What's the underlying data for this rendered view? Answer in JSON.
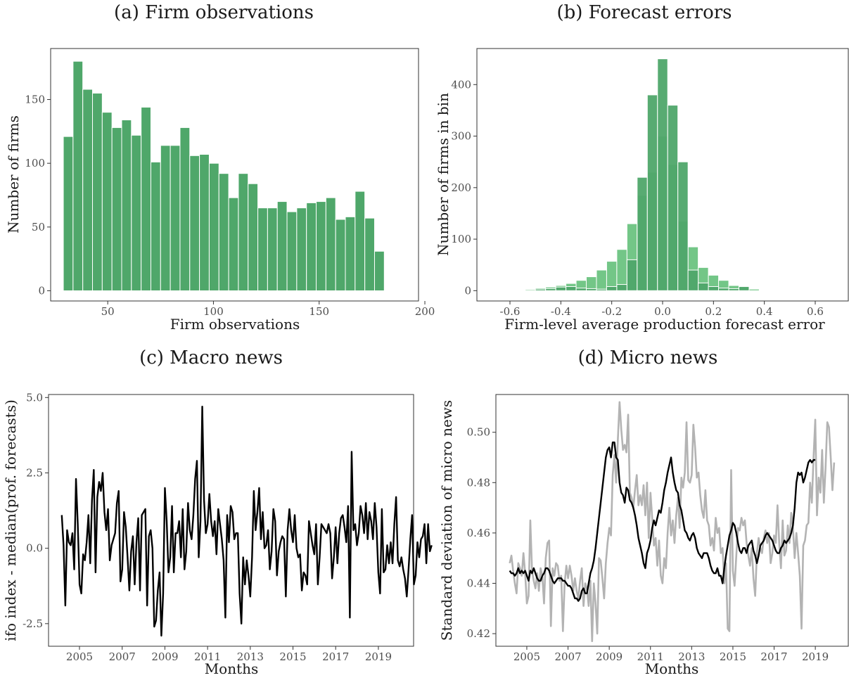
{
  "colors": {
    "bar_green": "#4fa76a",
    "bar_light_green": "#73c687",
    "line_black": "#000000",
    "line_grey": "#b3b3b3"
  },
  "chart_data": [
    {
      "panel": "a",
      "type": "bar",
      "title": "(a) Firm observations",
      "xlabel": "Firm observations",
      "ylabel": "Number of firms",
      "xlim": [
        23,
        197
      ],
      "ylim": [
        -8,
        190
      ],
      "xticks": [
        50,
        100,
        150,
        200
      ],
      "yticks": [
        0,
        50,
        100,
        150
      ],
      "xtick_labels": [
        "50",
        "100",
        "150",
        "200"
      ],
      "ytick_labels": [
        "0",
        "50",
        "100",
        "150"
      ],
      "bin_width": 4.6,
      "bin_start": 29,
      "values": [
        121,
        180,
        158,
        155,
        140,
        128,
        134,
        122,
        144,
        101,
        114,
        114,
        128,
        106,
        107,
        100,
        92,
        73,
        92,
        84,
        65,
        65,
        70,
        62,
        65,
        69,
        70,
        73,
        56,
        58,
        78,
        57,
        31
      ]
    },
    {
      "panel": "b",
      "type": "bar",
      "title": "(b) Forecast errors",
      "xlabel": "Firm-level average production forecast error",
      "ylabel": "Number of firms in bin",
      "xlim": [
        -0.73,
        0.73
      ],
      "ylim": [
        -20,
        470
      ],
      "xticks": [
        -0.6,
        -0.4,
        -0.2,
        0.0,
        0.2,
        0.4,
        0.6
      ],
      "yticks": [
        0,
        100,
        200,
        300,
        400
      ],
      "xtick_labels": [
        "-0.6",
        "-0.4",
        "-0.2",
        "0.0",
        "0.2",
        "0.4",
        "0.6"
      ],
      "ytick_labels": [
        "0",
        "100",
        "200",
        "300",
        "400"
      ],
      "series": [
        {
          "name": "light",
          "bin_width": 0.04,
          "x": [
            -0.6,
            -0.56,
            -0.52,
            -0.48,
            -0.44,
            -0.4,
            -0.36,
            -0.32,
            -0.28,
            -0.24,
            -0.2,
            -0.16,
            -0.12,
            -0.08,
            -0.04,
            0.0,
            0.04,
            0.08,
            0.12,
            0.16,
            0.2,
            0.24,
            0.28,
            0.32,
            0.36,
            0.4
          ],
          "values": [
            1,
            1,
            2,
            5,
            7,
            10,
            14,
            20,
            27,
            40,
            57,
            80,
            130,
            185,
            230,
            300,
            245,
            135,
            85,
            45,
            30,
            20,
            10,
            6,
            3,
            1
          ]
        },
        {
          "name": "dark",
          "bin_width": 0.04,
          "x": [
            -0.6,
            -0.56,
            -0.52,
            -0.48,
            -0.44,
            -0.4,
            -0.36,
            -0.32,
            -0.28,
            -0.24,
            -0.2,
            -0.16,
            -0.12,
            -0.08,
            -0.04,
            0.0,
            0.04,
            0.08,
            0.12,
            0.16,
            0.2,
            0.24,
            0.28,
            0.32,
            0.36,
            0.4
          ],
          "values": [
            0,
            0,
            0,
            3,
            4,
            7,
            8,
            5,
            4,
            3,
            8,
            12,
            60,
            220,
            380,
            450,
            360,
            250,
            40,
            15,
            8,
            5,
            4,
            8,
            0,
            0
          ]
        }
      ]
    },
    {
      "panel": "c",
      "type": "line",
      "title": "(c) Macro news",
      "xlabel": "Months",
      "ylabel": "ifo index - median(prof. forecasts)",
      "xlim": [
        2003.55,
        2020.65
      ],
      "ylim": [
        -3.25,
        5.1
      ],
      "xticks": [
        2005,
        2007,
        2009,
        2011,
        2013,
        2015,
        2017,
        2019
      ],
      "yticks": [
        -2.5,
        0.0,
        2.5,
        5.0
      ],
      "xtick_labels": [
        "2005",
        "2007",
        "2009",
        "2011",
        "2013",
        "2015",
        "2017",
        "2019"
      ],
      "ytick_labels": [
        "-2.5",
        "0.0",
        "2.5",
        "5.0"
      ],
      "series": [
        {
          "x_start": 2004.17,
          "x_step": 0.0833,
          "values": [
            1.1,
            0.1,
            -1.9,
            0.6,
            0.2,
            0.1,
            0.5,
            -0.7,
            2.3,
            0.8,
            -1.2,
            -1.5,
            -0.2,
            -0.4,
            0.2,
            1.1,
            -0.5,
            1.6,
            2.6,
            -0.8,
            1.7,
            2.2,
            1.9,
            2.5,
            1.2,
            0.6,
            1.3,
            -0.4,
            0.1,
            0.3,
            0.5,
            1.5,
            1.9,
            -1.1,
            -0.7,
            1.2,
            0.7,
            -0.3,
            -1.4,
            -0.1,
            0.4,
            -1.2,
            0.2,
            1.0,
            -1.4,
            1.1,
            1.2,
            1.3,
            -1.9,
            0.4,
            0.6,
            0.0,
            -2.6,
            -2.4,
            -1.4,
            -0.8,
            -2.9,
            -1.5,
            2.0,
            0.9,
            -0.8,
            -0.3,
            1.4,
            -0.8,
            0.5,
            0.5,
            0.9,
            -0.3,
            1.3,
            -0.7,
            -0.1,
            1.5,
            0.6,
            0.3,
            1.1,
            2.3,
            2.9,
            -0.3,
            0.9,
            4.7,
            1.6,
            0.5,
            0.8,
            1.8,
            0.9,
            0.4,
            0.9,
            -0.2,
            1.3,
            0.8,
            0.3,
            -0.4,
            -2.3,
            1.1,
            0.2,
            1.4,
            1.2,
            0.3,
            0.5,
            0.5,
            -1.5,
            -2.5,
            -0.3,
            -1.2,
            -0.4,
            -0.9,
            -1.6,
            -0.3,
            1.9,
            0.6,
            1.2,
            2.0,
            0.3,
            1.2,
            0.0,
            0.1,
            0.6,
            -0.7,
            -0.1,
            1.3,
            0.9,
            -0.9,
            -0.1,
            0.2,
            0.4,
            0.3,
            -1.6,
            0.6,
            1.3,
            0.6,
            0.2,
            1.1,
            0.0,
            -0.3,
            -0.2,
            -1.4,
            -0.8,
            -0.9,
            -1.2,
            0.9,
            0.5,
            0.1,
            -0.2,
            0.8,
            -1.2,
            -0.3,
            0.8,
            0.7,
            0.6,
            0.5,
            0.8,
            0.5,
            -1.0,
            -0.3,
            0.7,
            -0.5,
            0.5,
            1.0,
            1.1,
            0.7,
            0.2,
            1.4,
            -2.3,
            3.2,
            0.6,
            0.8,
            0.1,
            0.5,
            1.4,
            1.1,
            0.5,
            1.5,
            0.3,
            1.2,
            0.9,
            0.3,
            1.5,
            0.7,
            -0.8,
            -1.5,
            1.3,
            -0.8,
            -0.7,
            0.1,
            -0.5,
            0.2,
            -0.5,
            0.8,
            1.7,
            -0.4,
            -0.6,
            -0.3,
            -0.7,
            -1.0,
            -1.6,
            -0.7,
            0.3,
            1.1,
            -1.2,
            -0.9,
            0.2,
            -0.3,
            0.3,
            0.4,
            0.8,
            -0.5,
            0.8,
            -0.1,
            0.1
          ]
        }
      ]
    },
    {
      "panel": "d",
      "type": "line",
      "title": "(d) Micro news",
      "xlabel": "Months",
      "ylabel": "Standard deviation of micro news",
      "xlim": [
        2003.5,
        2020.6
      ],
      "ylim": [
        0.415,
        0.515
      ],
      "xticks": [
        2005,
        2007,
        2009,
        2011,
        2013,
        2015,
        2017,
        2019
      ],
      "yticks": [
        0.42,
        0.44,
        0.46,
        0.48,
        0.5
      ],
      "xtick_labels": [
        "2005",
        "2007",
        "2009",
        "2011",
        "2013",
        "2015",
        "2017",
        "2019"
      ],
      "ytick_labels": [
        "0.42",
        "0.44",
        "0.46",
        "0.48",
        "0.50"
      ],
      "series": [
        {
          "name": "monthly",
          "x_start": 2004.17,
          "x_step": 0.0833,
          "values": [
            0.448,
            0.451,
            0.445,
            0.44,
            0.436,
            0.448,
            0.446,
            0.443,
            0.452,
            0.444,
            0.432,
            0.435,
            0.465,
            0.445,
            0.441,
            0.438,
            0.444,
            0.437,
            0.446,
            0.443,
            0.432,
            0.45,
            0.456,
            0.457,
            0.423,
            0.446,
            0.443,
            0.448,
            0.447,
            0.441,
            0.443,
            0.421,
            0.44,
            0.447,
            0.442,
            0.447,
            0.443,
            0.437,
            0.442,
            0.437,
            0.434,
            0.441,
            0.446,
            0.431,
            0.44,
            0.438,
            0.431,
            0.441,
            0.417,
            0.44,
            0.432,
            0.42,
            0.45,
            0.449,
            0.442,
            0.434,
            0.448,
            0.456,
            0.462,
            0.459,
            0.483,
            0.491,
            0.48,
            0.497,
            0.512,
            0.501,
            0.493,
            0.495,
            0.492,
            0.507,
            0.476,
            0.474,
            0.47,
            0.477,
            0.483,
            0.471,
            0.475,
            0.471,
            0.479,
            0.467,
            0.48,
            0.458,
            0.476,
            0.466,
            0.455,
            0.458,
            0.447,
            0.457,
            0.443,
            0.44,
            0.45,
            0.446,
            0.46,
            0.47,
            0.459,
            0.465,
            0.456,
            0.467,
            0.474,
            0.462,
            0.482,
            0.478,
            0.484,
            0.504,
            0.481,
            0.48,
            0.483,
            0.503,
            0.494,
            0.482,
            0.484,
            0.475,
            0.469,
            0.466,
            0.477,
            0.465,
            0.463,
            0.455,
            0.458,
            0.453,
            0.466,
            0.46,
            0.462,
            0.452,
            0.454,
            0.44,
            0.448,
            0.422,
            0.421,
            0.485,
            0.445,
            0.439,
            0.451,
            0.462,
            0.461,
            0.466,
            0.463,
            0.465,
            0.456,
            0.451,
            0.447,
            0.454,
            0.442,
            0.435,
            0.452,
            0.458,
            0.454,
            0.452,
            0.458,
            0.461,
            0.456,
            0.46,
            0.448,
            0.452,
            0.459,
            0.456,
            0.471,
            0.456,
            0.446,
            0.465,
            0.451,
            0.453,
            0.463,
            0.456,
            0.468,
            0.462,
            0.45,
            0.46,
            0.452,
            0.443,
            0.422,
            0.455,
            0.457,
            0.463,
            0.464,
            0.48,
            0.472,
            0.49,
            0.505,
            0.467,
            0.482,
            0.476,
            0.493,
            0.472,
            0.486,
            0.504,
            0.502,
            0.49,
            0.477,
            0.488
          ]
        },
        {
          "name": "smoothed",
          "x_start": 2004.17,
          "x_step": 0.0833,
          "values": [
            0.445,
            0.444,
            0.444,
            0.443,
            0.444,
            0.446,
            0.444,
            0.445,
            0.444,
            0.445,
            0.443,
            0.441,
            0.445,
            0.444,
            0.446,
            0.444,
            0.442,
            0.441,
            0.441,
            0.443,
            0.444,
            0.446,
            0.446,
            0.445,
            0.443,
            0.441,
            0.44,
            0.441,
            0.442,
            0.442,
            0.442,
            0.441,
            0.441,
            0.44,
            0.439,
            0.439,
            0.438,
            0.436,
            0.434,
            0.434,
            0.433,
            0.434,
            0.437,
            0.438,
            0.436,
            0.436,
            0.44,
            0.444,
            0.446,
            0.449,
            0.454,
            0.46,
            0.466,
            0.472,
            0.478,
            0.484,
            0.49,
            0.493,
            0.494,
            0.49,
            0.496,
            0.496,
            0.49,
            0.489,
            0.48,
            0.476,
            0.475,
            0.472,
            0.478,
            0.477,
            0.473,
            0.472,
            0.47,
            0.467,
            0.463,
            0.458,
            0.455,
            0.452,
            0.448,
            0.446,
            0.452,
            0.454,
            0.457,
            0.462,
            0.465,
            0.463,
            0.466,
            0.469,
            0.468,
            0.472,
            0.477,
            0.48,
            0.484,
            0.487,
            0.49,
            0.484,
            0.48,
            0.477,
            0.476,
            0.471,
            0.469,
            0.465,
            0.461,
            0.46,
            0.458,
            0.457,
            0.459,
            0.46,
            0.458,
            0.454,
            0.452,
            0.451,
            0.45,
            0.452,
            0.452,
            0.452,
            0.45,
            0.447,
            0.445,
            0.444,
            0.444,
            0.446,
            0.443,
            0.443,
            0.44,
            0.446,
            0.451,
            0.455,
            0.459,
            0.461,
            0.464,
            0.463,
            0.46,
            0.456,
            0.453,
            0.452,
            0.454,
            0.454,
            0.452,
            0.455,
            0.456,
            0.457,
            0.453,
            0.451,
            0.448,
            0.451,
            0.455,
            0.456,
            0.457,
            0.459,
            0.46,
            0.459,
            0.458,
            0.457,
            0.455,
            0.453,
            0.452,
            0.452,
            0.454,
            0.455,
            0.457,
            0.456,
            0.457,
            0.458,
            0.46,
            0.463,
            0.47,
            0.48,
            0.484,
            0.483,
            0.484,
            0.48,
            0.482,
            0.485,
            0.488,
            0.489,
            0.488,
            0.489,
            0.489
          ]
        }
      ]
    }
  ]
}
